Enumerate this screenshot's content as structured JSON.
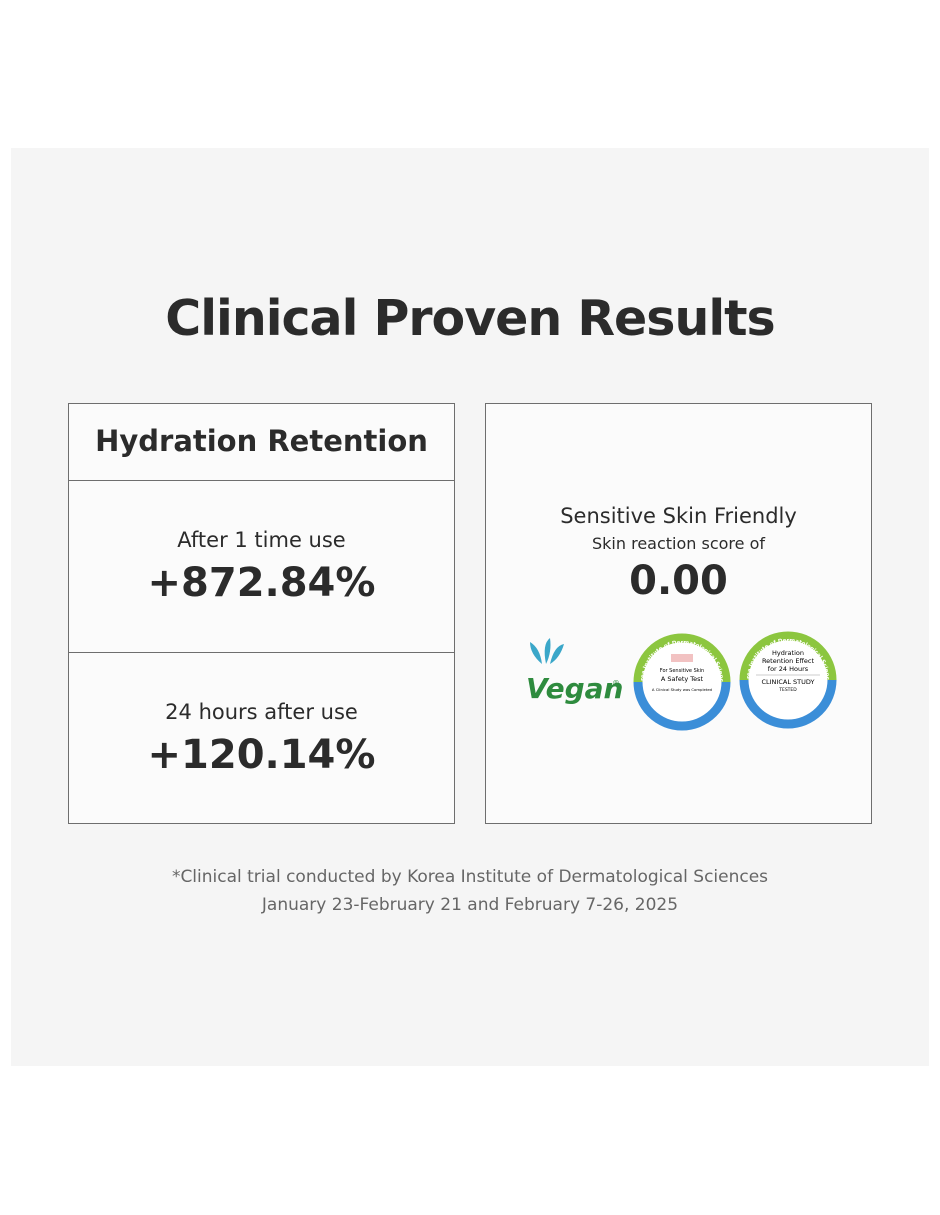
{
  "header": {
    "title": "Clinical Proven Results"
  },
  "hydration_card": {
    "title": "Hydration Retention",
    "results": [
      {
        "label": "After 1 time use",
        "value": "+872.84%"
      },
      {
        "label": "24 hours after use",
        "value": "+120.14%"
      }
    ]
  },
  "sensitive_card": {
    "title": "Sensitive Skin Friendly",
    "subtitle": "Skin reaction score of",
    "value": "0.00",
    "badges": [
      {
        "name": "Vegan",
        "mark": "®"
      },
      {
        "ring": "Korea Institute of Dermatological Sciences",
        "lines": [
          "For Sensitive Skin",
          "A Safety Test",
          "A Clinical Study was Completed"
        ]
      },
      {
        "ring": "Korea Institute of Dermatological Sciences",
        "lines": [
          "Hydration",
          "Retention Effect",
          "for 24 Hours",
          "CLINICAL STUDY",
          "TESTED"
        ]
      }
    ]
  },
  "footnote": {
    "lines": [
      "*Clinical trial conducted by Korea Institute of Dermatological Sciences",
      "January 23-February 21 and February 7-26, 2025"
    ]
  }
}
